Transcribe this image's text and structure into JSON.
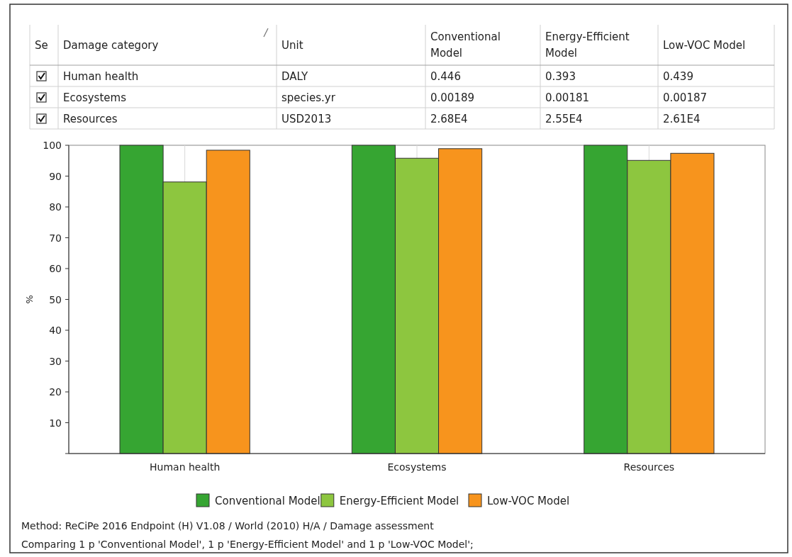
{
  "chart_data": [
    {
      "type": "other",
      "annotations": [
        "Se",
        "Damage category",
        "Unit",
        "Conventional Model",
        "Energy-Efficient Model",
        "Low-VOC Model",
        "Human health",
        "DALY",
        "0.446",
        "0.393",
        "0.439",
        "Ecosystems",
        "species.yr",
        "0.00189",
        "0.00181",
        "0.00187",
        "Resources",
        "USD2013",
        "2.68E4",
        "2.55E4",
        "2.61E4"
      ]
    },
    {
      "type": "bar",
      "categories": [
        "Human health",
        "Ecosystems",
        "Resources"
      ],
      "ylabel": "%",
      "ylim": [
        0,
        100
      ],
      "yticks": [
        {
          "value": 0,
          "label": null
        },
        10,
        20,
        30,
        40,
        50,
        60,
        70,
        80,
        90,
        100
      ],
      "grid": "x",
      "legend": "bottom",
      "series": [
        {
          "name": "Conventional Model",
          "color": "#36a532",
          "values": [
            100,
            100,
            100
          ]
        },
        {
          "name": "Energy-Efficient Model",
          "color": "#8dc63f",
          "values": [
            88.1,
            95.8,
            95.1
          ]
        },
        {
          "name": "Low-VOC Model",
          "color": "#f7941d",
          "values": [
            98.4,
            98.9,
            97.4
          ]
        }
      ],
      "annotations": [
        "Method: ReCiPe 2016 Endpoint (H) V1.08 / World (2010) H/A / Damage assessment",
        "Comparing 1 p 'Conventional Model', 1 p 'Energy-Efficient Model' and 1 p 'Low-VOC Model';"
      ]
    }
  ]
}
